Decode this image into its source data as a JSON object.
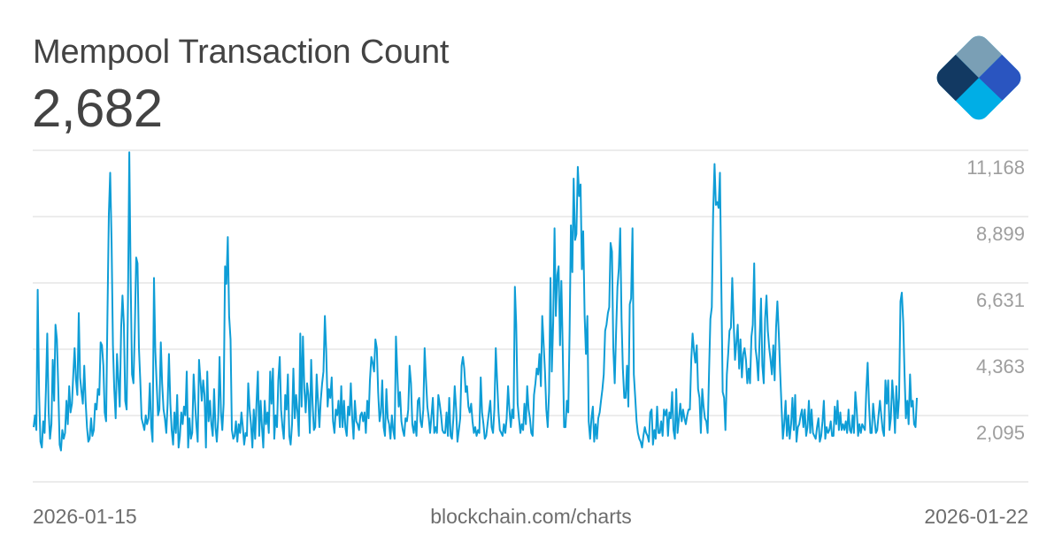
{
  "header": {
    "title": "Mempool Transaction Count",
    "current_value": "2,682"
  },
  "logo": {
    "name": "blockchain-logo",
    "colors": [
      "#123962",
      "#7a9fb5",
      "#2a55c0",
      "#b0d4e6",
      "#00aee6"
    ]
  },
  "y_axis": {
    "labels": [
      "11,168",
      "8,899",
      "6,631",
      "4,363",
      "2,095"
    ]
  },
  "footer": {
    "start_date": "2026-01-15",
    "source": "blockchain.com/charts",
    "end_date": "2026-01-22"
  },
  "colors": {
    "line": "#0e9dd6",
    "grid": "#d9d9d9",
    "title": "#434343",
    "axis_text": "#9e9e9e",
    "footer_text": "#6d6d6d"
  },
  "chart_data": {
    "type": "line",
    "title": "Mempool Transaction Count",
    "xlabel": "",
    "ylabel": "",
    "x_start": "2026-01-15",
    "x_end": "2026-01-22",
    "yticks": [
      2095,
      4363,
      6631,
      8899,
      11168
    ],
    "ylim": [
      -173,
      11168
    ],
    "grid": true,
    "legend": null,
    "series": [
      {
        "name": "Mempool Transaction Count",
        "values": [
          1700,
          2100,
          1600,
          6400,
          2800,
          1200,
          1000,
          1900,
          1500,
          3000,
          4900,
          2200,
          1300,
          1800,
          4000,
          2600,
          5200,
          4700,
          3100,
          1100,
          900,
          1600,
          1300,
          1500,
          2600,
          1800,
          3100,
          2200,
          2500,
          3500,
          4400,
          3300,
          2800,
          5600,
          3400,
          2900,
          2500,
          3800,
          2600,
          1700,
          1200,
          1300,
          2000,
          1400,
          1600,
          2500,
          2300,
          3000,
          2800,
          4600,
          4500,
          3800,
          2200,
          1900,
          5500,
          9000,
          10400,
          8000,
          4500,
          3000,
          2000,
          4200,
          3300,
          2400,
          5100,
          6200,
          5200,
          2600,
          2300,
          6000,
          11100,
          6600,
          3500,
          3200,
          5000,
          7500,
          7300,
          4400,
          3300,
          2000,
          1800,
          1600,
          2100,
          1800,
          2000,
          3200,
          1700,
          1200,
          6800,
          4300,
          3200,
          2100,
          2300,
          4600,
          3200,
          2300,
          2000,
          1500,
          2500,
          4200,
          2500,
          1600,
          1100,
          2200,
          1500,
          2800,
          1000,
          1400,
          2200,
          1800,
          2400,
          2100,
          3600,
          1000,
          2000,
          1300,
          1500,
          3500,
          2600,
          1800,
          1200,
          4000,
          3300,
          2600,
          3300,
          2800,
          1000,
          3600,
          1900,
          2600,
          1800,
          1400,
          3000,
          1700,
          1200,
          2000,
          4100,
          2200,
          1600,
          2500,
          7200,
          6600,
          8200,
          5500,
          4700,
          1600,
          1300,
          1400,
          1900,
          1200,
          1800,
          1500,
          2200,
          1700,
          1100,
          1500,
          1400,
          3200,
          2300,
          1800,
          1000,
          2300,
          1300,
          2500,
          3600,
          1400,
          2600,
          1700,
          1000,
          2600,
          1800,
          2200,
          1500,
          3600,
          2500,
          3700,
          1300,
          2100,
          1700,
          3300,
          4100,
          2300,
          1700,
          1300,
          2800,
          2300,
          3500,
          1400,
          1100,
          1800,
          3700,
          2000,
          2800,
          2200,
          1400,
          4900,
          2400,
          4800,
          3000,
          2200,
          3200,
          2800,
          1500,
          4000,
          2500,
          1600,
          1700,
          3500,
          2600,
          1700,
          2600,
          3200,
          3600,
          5500,
          4300,
          2400,
          3000,
          2700,
          3400,
          1900,
          1500,
          2300,
          2100,
          2600,
          1700,
          3100,
          1700,
          2600,
          1700,
          1400,
          2400,
          2100,
          3200,
          2000,
          1300,
          2600,
          1900,
          1800,
          1600,
          2100,
          2200,
          1900,
          2200,
          1500,
          2600,
          2000,
          3300,
          4100,
          3900,
          3600,
          4700,
          4400,
          2900,
          1900,
          2200,
          3300,
          1700,
          1400,
          3000,
          2000,
          1800,
          1300,
          2100,
          1600,
          1300,
          4800,
          3600,
          2400,
          2900,
          1900,
          1600,
          1400,
          2000,
          1900,
          2300,
          3800,
          3200,
          1800,
          1500,
          1900,
          1400,
          2600,
          2700,
          1900,
          1700,
          2300,
          4400,
          3300,
          2400,
          2000,
          1500,
          2100,
          2700,
          1500,
          1700,
          1500,
          2800,
          2500,
          2100,
          1600,
          1500,
          1500,
          2200,
          1400,
          2700,
          1400,
          1300,
          2000,
          3100,
          2300,
          1200,
          1600,
          2000,
          3800,
          4100,
          3700,
          2900,
          3100,
          2400,
          2200,
          2500,
          1900,
          1500,
          1700,
          1400,
          1600,
          1500,
          3400,
          2200,
          1800,
          1300,
          1400,
          1800,
          2200,
          2600,
          1700,
          1500,
          2300,
          4400,
          3300,
          2200,
          1600,
          1500,
          1400,
          1800,
          1500,
          2000,
          3100,
          2300,
          1700,
          2300,
          2000,
          6500,
          5200,
          2500,
          2000,
          1500,
          1800,
          1600,
          2500,
          1800,
          3100,
          2300,
          2000,
          1500,
          1400,
          2800,
          3200,
          3700,
          3500,
          4200,
          3100,
          5500,
          4600,
          3600,
          2300,
          1700,
          2900,
          6800,
          3600,
          5300,
          8500,
          5500,
          6900,
          7200,
          4500,
          6700,
          4300,
          1700,
          1700,
          2600,
          2200,
          4900,
          8600,
          7000,
          10200,
          8100,
          8300,
          10600,
          9600,
          10000,
          7100,
          8400,
          5500,
          4200,
          5500,
          1900,
          1300,
          2000,
          2400,
          1200,
          1800,
          1300,
          2000,
          2200,
          2600,
          3000,
          3500,
          5000,
          5200,
          5600,
          5800,
          8000,
          7700,
          4400,
          3200,
          4900,
          6500,
          7100,
          8500,
          5400,
          3700,
          2700,
          2700,
          3800,
          2400,
          5900,
          6100,
          8500,
          3500,
          2700,
          1900,
          1500,
          1300,
          1200,
          1000,
          1400,
          1700,
          1500,
          1400,
          1200,
          2200,
          2300,
          1100,
          1600,
          1300,
          2400,
          1500,
          1500,
          1900,
          1400,
          2300,
          2100,
          2300,
          1400,
          2200,
          2000,
          2900,
          1600,
          1300,
          3000,
          1500,
          2000,
          2500,
          1900,
          2300,
          2000,
          1800,
          2100,
          2300,
          2300,
          4000,
          4900,
          4300,
          3900,
          4500,
          3000,
          2700,
          1500,
          3000,
          2400,
          2000,
          1900,
          1500,
          3600,
          5400,
          5800,
          9000,
          10700,
          9300,
          9400,
          9200,
          10400,
          6500,
          2900,
          2700,
          1600,
          3500,
          4200,
          5000,
          5100,
          6800,
          5300,
          4000,
          4600,
          5200,
          3700,
          4700,
          3400,
          4200,
          4400,
          4000,
          3200,
          3700,
          3200,
          4800,
          5200,
          7300,
          4400,
          4000,
          3300,
          4700,
          6100,
          3800,
          3200,
          5400,
          6200,
          5000,
          4400,
          4000,
          3500,
          4500,
          3300,
          5100,
          6000,
          4900,
          3600,
          2400,
          1300,
          1800,
          2600,
          1400,
          2100,
          1300,
          1800,
          2700,
          1600,
          2800,
          1200,
          1700,
          1800,
          2100,
          2300,
          1700,
          2300,
          1400,
          1700,
          2600,
          1500,
          2300,
          1500,
          1400,
          1300,
          1700,
          2000,
          1200,
          1400,
          1900,
          2600,
          1300,
          1700,
          1500,
          1600,
          1900,
          1400,
          1400,
          2400,
          1800,
          2600,
          1600,
          2200,
          1600,
          1800,
          1600,
          1900,
          1500,
          2300,
          1600,
          1500,
          2100,
          1500,
          2900,
          2300,
          1400,
          1800,
          1500,
          1800,
          1700,
          1600,
          2900,
          3900,
          2500,
          1500,
          1500,
          2500,
          2000,
          1500,
          1600,
          2100,
          2600,
          2100,
          1600,
          1400,
          3300,
          2500,
          3300,
          1600,
          2000,
          3300,
          2600,
          1500,
          3100,
          2000,
          2700,
          6000,
          6300,
          5300,
          3500,
          2000,
          2600,
          1800,
          3500,
          2400,
          2600,
          1800,
          1700,
          2700
        ]
      }
    ]
  }
}
